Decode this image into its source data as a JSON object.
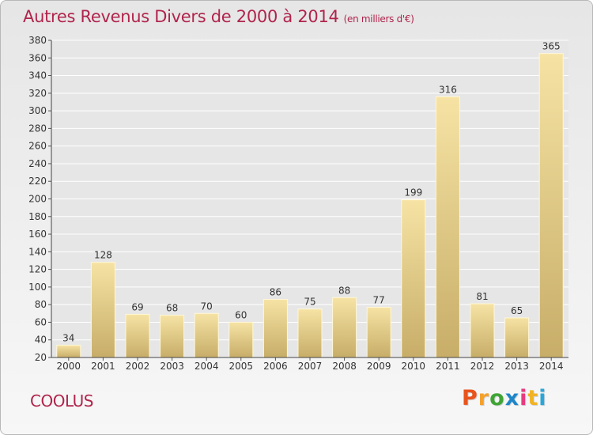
{
  "header": {
    "title": "Autres Revenus Divers de 2000 à 2014",
    "unit": "(en milliers d'€)"
  },
  "footer": {
    "place": "COOLUS",
    "brand": [
      "P",
      "r",
      "o",
      "x",
      "i",
      "t",
      "i"
    ],
    "brand_colors": [
      "#e8541c",
      "#f4a12b",
      "#3fa535",
      "#1d86c8",
      "#e73b7f",
      "#f0b324",
      "#2aa6d9"
    ]
  },
  "colors": {
    "title": "#b0244c",
    "bar_light": "#f6e3a4",
    "bar_dark": "#c7ad68",
    "grid": "#ffffff",
    "plot_bg": "#e6e6e6"
  },
  "chart_data": {
    "type": "bar",
    "categories": [
      "2000",
      "2001",
      "2002",
      "2003",
      "2004",
      "2005",
      "2006",
      "2007",
      "2008",
      "2009",
      "2010",
      "2011",
      "2012",
      "2013",
      "2014"
    ],
    "values": [
      34,
      128,
      69,
      68,
      70,
      60,
      86,
      75,
      88,
      77,
      199,
      316,
      81,
      65,
      365
    ],
    "yticks": [
      "20",
      "40",
      "60",
      "80",
      "100",
      "120",
      "140",
      "160",
      "180",
      "200",
      "220",
      "240",
      "260",
      "280",
      "300",
      "320",
      "340",
      "360",
      "380"
    ],
    "ylim": [
      20,
      380
    ],
    "grid": true,
    "xlabel": "",
    "ylabel": ""
  }
}
